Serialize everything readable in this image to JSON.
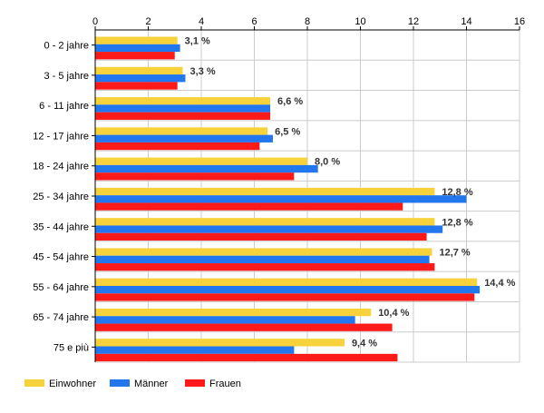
{
  "chart_data": {
    "type": "bar",
    "orientation": "horizontal",
    "categories": [
      "0 - 2 jahre",
      "3 - 5 jahre",
      "6 - 11 jahre",
      "12 - 17 jahre",
      "18 - 24 jahre",
      "25 - 34 jahre",
      "35 - 44 jahre",
      "45 - 54 jahre",
      "55 - 64 jahre",
      "65 - 74 jahre",
      "75 e più"
    ],
    "series": [
      {
        "name": "Einwohner",
        "color": "#f7d23a",
        "values": [
          3.1,
          3.3,
          6.6,
          6.5,
          8.0,
          12.8,
          12.8,
          12.7,
          14.4,
          10.4,
          9.4
        ],
        "labels": [
          "3,1 %",
          "3,3 %",
          "6,6 %",
          "6,5 %",
          "8,0 %",
          "12,8 %",
          "12,8 %",
          "12,7 %",
          "14,4 %",
          "10,4 %",
          "9,4 %"
        ]
      },
      {
        "name": "Männer",
        "color": "#2277ee",
        "values": [
          3.2,
          3.4,
          6.6,
          6.7,
          8.4,
          14.0,
          13.1,
          12.6,
          14.5,
          9.8,
          7.5
        ]
      },
      {
        "name": "Frauen",
        "color": "#ff1a1a",
        "values": [
          3.0,
          3.1,
          6.6,
          6.2,
          7.5,
          11.6,
          12.5,
          12.8,
          14.3,
          11.2,
          11.4
        ]
      }
    ],
    "xlim": [
      0,
      16
    ],
    "xticks": [
      0,
      2,
      4,
      6,
      8,
      10,
      12,
      14,
      16
    ],
    "xaxis_position": "top",
    "grid": true,
    "legend_position": "bottom-left"
  }
}
